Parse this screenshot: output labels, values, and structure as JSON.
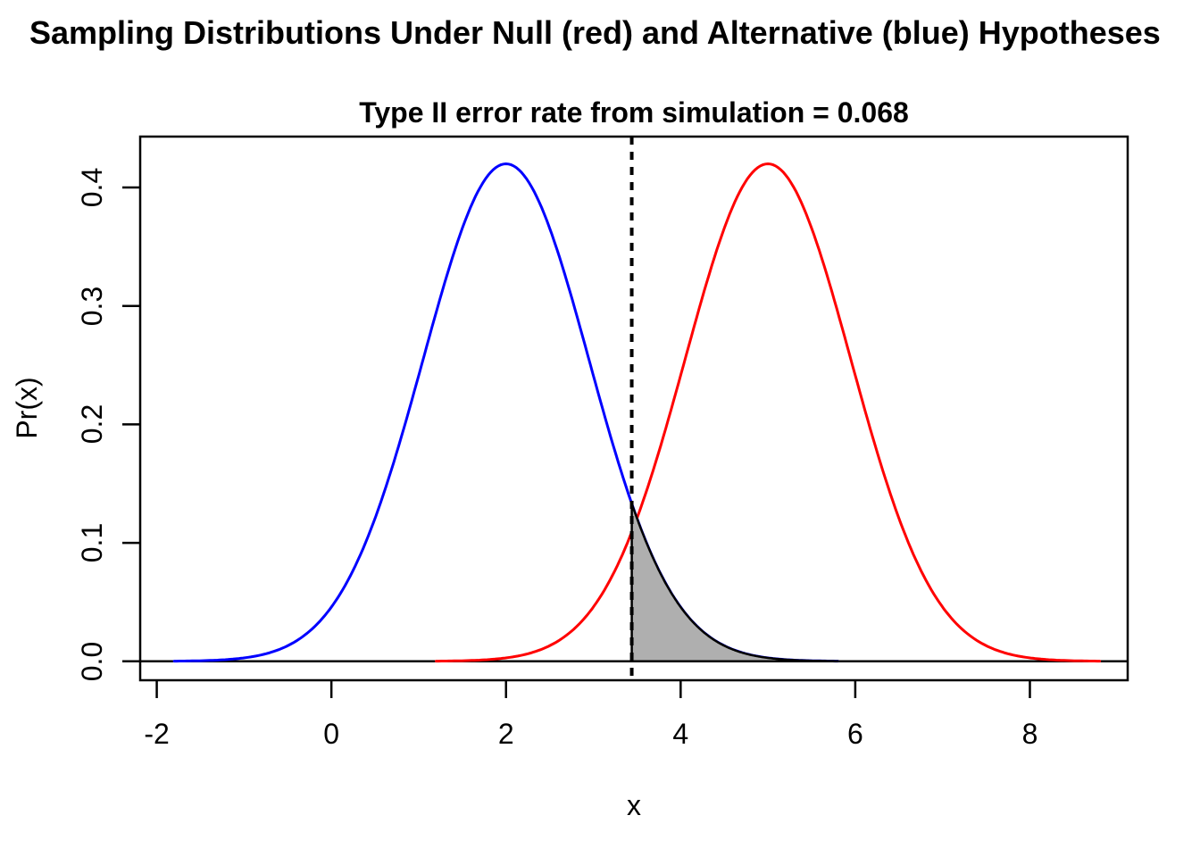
{
  "header": {
    "main_title": "Sampling Distributions Under Null (red) and Alternative (blue) Hypotheses",
    "plot_title": "Type II error rate from simulation = 0.068"
  },
  "chart_data": {
    "type": "line",
    "title": "Type II error rate from simulation = 0.068",
    "xlabel": "x",
    "ylabel": "Pr(x)",
    "xlim": [
      -2.19,
      9.12
    ],
    "ylim": [
      -0.016,
      0.443
    ],
    "x_ticks": [
      -2,
      0,
      2,
      4,
      6,
      8
    ],
    "x_tick_labels": [
      "-2",
      "0",
      "2",
      "4",
      "6",
      "8"
    ],
    "y_ticks": [
      0.0,
      0.1,
      0.2,
      0.3,
      0.4
    ],
    "y_tick_labels": [
      "0.0",
      "0.1",
      "0.2",
      "0.3",
      "0.4"
    ],
    "grid": false,
    "legend": "none",
    "series": [
      {
        "name": "alternative-hypothesis",
        "curve": "normal-density",
        "mean": 2,
        "sd": 0.95,
        "peak": 0.42,
        "x_range": [
          -1.8,
          5.8
        ],
        "color": "#0000FF"
      },
      {
        "name": "null-hypothesis",
        "curve": "normal-density",
        "mean": 5,
        "sd": 0.95,
        "peak": 0.42,
        "x_range": [
          1.2,
          8.8
        ],
        "color": "#FF0000"
      }
    ],
    "cutoff_line": {
      "x": 3.44,
      "style": "dashed",
      "color": "#000000"
    },
    "shaded_region": {
      "under_series": "alternative-hypothesis",
      "from": 3.44,
      "to": 5.8,
      "fill": "#AFAFAF",
      "border": "#000000",
      "label": "Type II error region"
    },
    "baseline_y": 0,
    "type_II_error_rate": 0.068,
    "axis_color": "#000000"
  }
}
